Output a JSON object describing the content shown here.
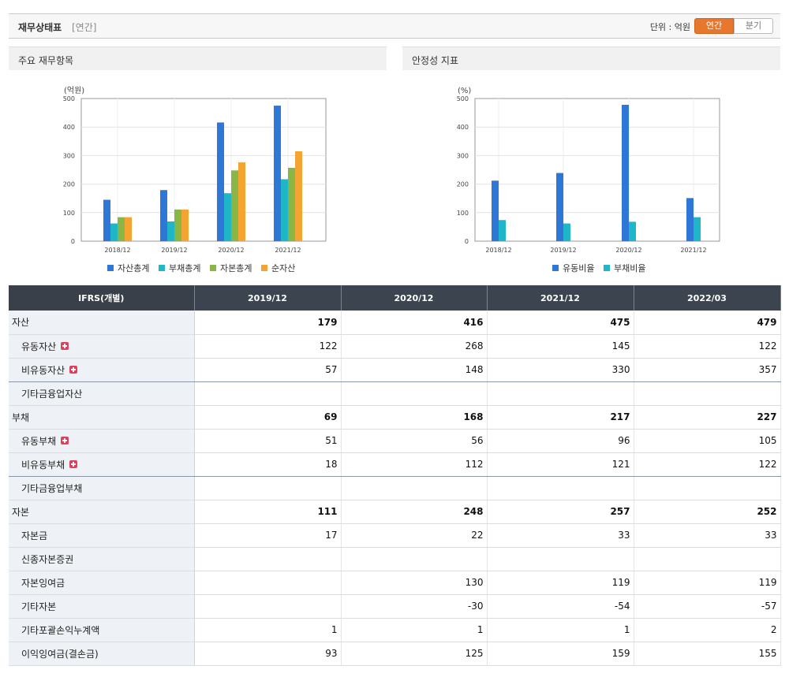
{
  "header": {
    "title": "재무상태표",
    "subtitle": "[연간]",
    "unit_label": "단위 : 억원",
    "toggle_annual": "연간",
    "toggle_quarter": "분기"
  },
  "panels": {
    "left_title": "주요 재무항목",
    "right_title": "안정성 지표"
  },
  "chart_data": [
    {
      "type": "bar",
      "title": "주요 재무항목",
      "ylabel": "(억원)",
      "ylim": [
        0,
        500
      ],
      "yticks": [
        "0",
        "100",
        "200",
        "300",
        "400",
        "500"
      ],
      "categories": [
        "2018/12",
        "2019/12",
        "2020/12",
        "2021/12"
      ],
      "series": [
        {
          "name": "자산총계",
          "color": "#2f77d6",
          "values": [
            145,
            179,
            416,
            475
          ]
        },
        {
          "name": "부채총계",
          "color": "#1fb6c8",
          "values": [
            62,
            69,
            168,
            217
          ]
        },
        {
          "name": "자본총계",
          "color": "#8ab646",
          "values": [
            84,
            111,
            248,
            257
          ]
        },
        {
          "name": "순자산",
          "color": "#f5a331",
          "values": [
            84,
            111,
            276,
            315
          ]
        }
      ],
      "legend": "bottom"
    },
    {
      "type": "bar",
      "title": "안정성 지표",
      "ylabel": "(%)",
      "ylim": [
        0,
        500
      ],
      "yticks": [
        "0",
        "100",
        "200",
        "300",
        "400",
        "500"
      ],
      "categories": [
        "2018/12",
        "2019/12",
        "2020/12",
        "2021/12"
      ],
      "series": [
        {
          "name": "유동비율",
          "color": "#2f77d6",
          "values": [
            212,
            239,
            478,
            151
          ]
        },
        {
          "name": "부채비율",
          "color": "#1fb6c8",
          "values": [
            74,
            62,
            68,
            84
          ]
        }
      ],
      "legend": "bottom"
    }
  ],
  "table": {
    "columns": [
      "IFRS(개별)",
      "2019/12",
      "2020/12",
      "2021/12",
      "2022/03"
    ],
    "rows": [
      {
        "label": "자산",
        "kind": "main",
        "sep": false,
        "plus": false,
        "values": [
          "179",
          "416",
          "475",
          "479"
        ]
      },
      {
        "label": "유동자산",
        "kind": "sub",
        "sep": false,
        "plus": true,
        "values": [
          "122",
          "268",
          "145",
          "122"
        ]
      },
      {
        "label": "비유동자산",
        "kind": "sub",
        "sep": true,
        "plus": true,
        "values": [
          "57",
          "148",
          "330",
          "357"
        ]
      },
      {
        "label": "기타금융업자산",
        "kind": "sub",
        "sep": false,
        "plus": false,
        "values": [
          "",
          "",
          "",
          ""
        ]
      },
      {
        "label": "부채",
        "kind": "main",
        "sep": false,
        "plus": false,
        "values": [
          "69",
          "168",
          "217",
          "227"
        ]
      },
      {
        "label": "유동부채",
        "kind": "sub",
        "sep": false,
        "plus": true,
        "values": [
          "51",
          "56",
          "96",
          "105"
        ]
      },
      {
        "label": "비유동부채",
        "kind": "sub",
        "sep": true,
        "plus": true,
        "values": [
          "18",
          "112",
          "121",
          "122"
        ]
      },
      {
        "label": "기타금융업부채",
        "kind": "sub",
        "sep": false,
        "plus": false,
        "values": [
          "",
          "",
          "",
          ""
        ]
      },
      {
        "label": "자본",
        "kind": "main",
        "sep": false,
        "plus": false,
        "values": [
          "111",
          "248",
          "257",
          "252"
        ]
      },
      {
        "label": "자본금",
        "kind": "sub",
        "sep": false,
        "plus": false,
        "values": [
          "17",
          "22",
          "33",
          "33"
        ]
      },
      {
        "label": "신종자본증권",
        "kind": "sub",
        "sep": false,
        "plus": false,
        "values": [
          "",
          "",
          "",
          ""
        ]
      },
      {
        "label": "자본잉여금",
        "kind": "sub",
        "sep": false,
        "plus": false,
        "values": [
          "",
          "130",
          "119",
          "119"
        ]
      },
      {
        "label": "기타자본",
        "kind": "sub",
        "sep": false,
        "plus": false,
        "values": [
          "",
          "-30",
          "-54",
          "-57"
        ]
      },
      {
        "label": "기타포괄손익누계액",
        "kind": "sub",
        "sep": false,
        "plus": false,
        "values": [
          "1",
          "1",
          "1",
          "2"
        ]
      },
      {
        "label": "이익잉여금(결손금)",
        "kind": "sub",
        "sep": false,
        "plus": false,
        "values": [
          "93",
          "125",
          "159",
          "155"
        ]
      }
    ]
  }
}
